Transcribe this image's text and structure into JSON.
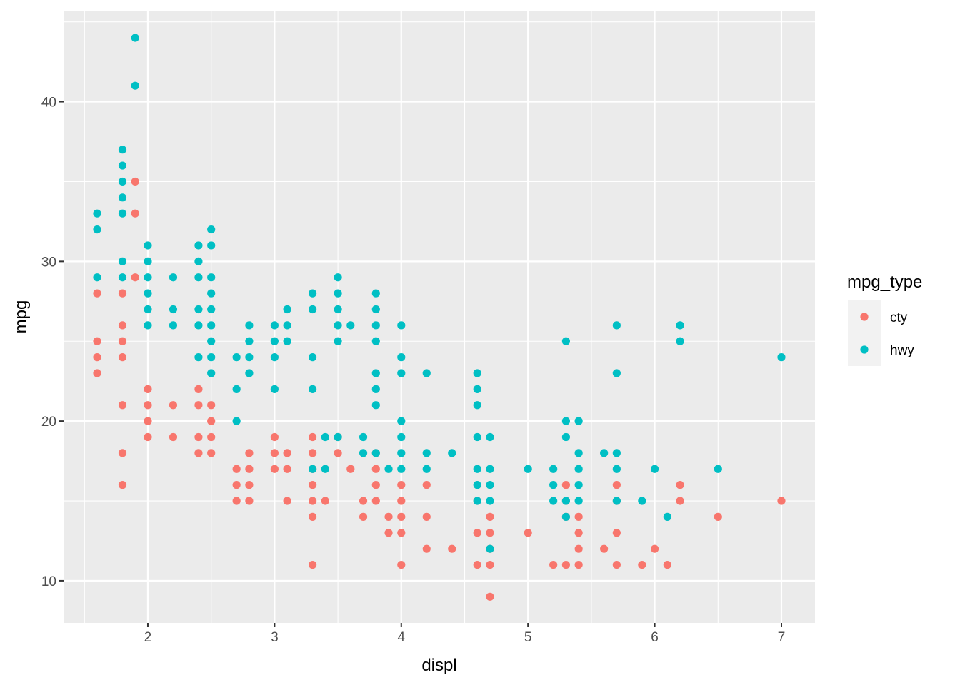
{
  "chart_data": {
    "type": "scatter",
    "title": "",
    "xlabel": "displ",
    "ylabel": "mpg",
    "xlim": [
      1.335,
      7.265
    ],
    "ylim": [
      7.36,
      45.7
    ],
    "xticks": [
      2,
      3,
      4,
      5,
      6,
      7
    ],
    "yticks": [
      10,
      20,
      30,
      40
    ],
    "grid": true,
    "legend": {
      "title": "mpg_type",
      "position": "right"
    },
    "series": [
      {
        "name": "cty",
        "color": "#F8766D",
        "points": [
          [
            1.6,
            28
          ],
          [
            1.6,
            25
          ],
          [
            1.6,
            24
          ],
          [
            1.6,
            23
          ],
          [
            1.8,
            28
          ],
          [
            1.8,
            26
          ],
          [
            1.8,
            25
          ],
          [
            1.8,
            24
          ],
          [
            1.8,
            21
          ],
          [
            1.8,
            18
          ],
          [
            1.8,
            16
          ],
          [
            1.9,
            35
          ],
          [
            1.9,
            33
          ],
          [
            1.9,
            29
          ],
          [
            2.0,
            22
          ],
          [
            2.0,
            21
          ],
          [
            2.0,
            20
          ],
          [
            2.0,
            19
          ],
          [
            2.2,
            21
          ],
          [
            2.2,
            19
          ],
          [
            2.4,
            22
          ],
          [
            2.4,
            21
          ],
          [
            2.4,
            19
          ],
          [
            2.4,
            18
          ],
          [
            2.5,
            21
          ],
          [
            2.5,
            20
          ],
          [
            2.5,
            19
          ],
          [
            2.5,
            18
          ],
          [
            2.7,
            17
          ],
          [
            2.7,
            16
          ],
          [
            2.7,
            15
          ],
          [
            2.8,
            18
          ],
          [
            2.8,
            17
          ],
          [
            2.8,
            16
          ],
          [
            2.8,
            15
          ],
          [
            3.0,
            19
          ],
          [
            3.0,
            18
          ],
          [
            3.0,
            17
          ],
          [
            3.1,
            18
          ],
          [
            3.1,
            17
          ],
          [
            3.1,
            15
          ],
          [
            3.3,
            19
          ],
          [
            3.3,
            18
          ],
          [
            3.3,
            17
          ],
          [
            3.3,
            16
          ],
          [
            3.3,
            15
          ],
          [
            3.3,
            14
          ],
          [
            3.3,
            11
          ],
          [
            3.4,
            15
          ],
          [
            3.5,
            19
          ],
          [
            3.5,
            18
          ],
          [
            3.6,
            17
          ],
          [
            3.7,
            15
          ],
          [
            3.7,
            14
          ],
          [
            3.8,
            18
          ],
          [
            3.8,
            17
          ],
          [
            3.8,
            16
          ],
          [
            3.8,
            15
          ],
          [
            3.9,
            14
          ],
          [
            3.9,
            13
          ],
          [
            4.0,
            16
          ],
          [
            4.0,
            15
          ],
          [
            4.0,
            14
          ],
          [
            4.0,
            13
          ],
          [
            4.0,
            11
          ],
          [
            4.2,
            16
          ],
          [
            4.2,
            14
          ],
          [
            4.2,
            12
          ],
          [
            4.4,
            12
          ],
          [
            4.6,
            15
          ],
          [
            4.6,
            13
          ],
          [
            4.6,
            11
          ],
          [
            4.7,
            14
          ],
          [
            4.7,
            13
          ],
          [
            4.7,
            12
          ],
          [
            4.7,
            11
          ],
          [
            4.7,
            9
          ],
          [
            5.0,
            13
          ],
          [
            5.2,
            11
          ],
          [
            5.3,
            16
          ],
          [
            5.3,
            15
          ],
          [
            5.3,
            14
          ],
          [
            5.3,
            11
          ],
          [
            5.4,
            14
          ],
          [
            5.4,
            13
          ],
          [
            5.4,
            12
          ],
          [
            5.4,
            11
          ],
          [
            5.6,
            12
          ],
          [
            5.7,
            16
          ],
          [
            5.7,
            15
          ],
          [
            5.7,
            13
          ],
          [
            5.7,
            11
          ],
          [
            5.9,
            11
          ],
          [
            6.0,
            12
          ],
          [
            6.1,
            11
          ],
          [
            6.2,
            16
          ],
          [
            6.2,
            15
          ],
          [
            6.5,
            14
          ],
          [
            7.0,
            15
          ]
        ]
      },
      {
        "name": "hwy",
        "color": "#00BFC4",
        "points": [
          [
            1.6,
            33
          ],
          [
            1.6,
            32
          ],
          [
            1.6,
            29
          ],
          [
            1.8,
            37
          ],
          [
            1.8,
            36
          ],
          [
            1.8,
            35
          ],
          [
            1.8,
            34
          ],
          [
            1.8,
            33
          ],
          [
            1.8,
            30
          ],
          [
            1.8,
            29
          ],
          [
            1.9,
            44
          ],
          [
            1.9,
            41
          ],
          [
            2.0,
            31
          ],
          [
            2.0,
            30
          ],
          [
            2.0,
            29
          ],
          [
            2.0,
            28
          ],
          [
            2.0,
            27
          ],
          [
            2.0,
            26
          ],
          [
            2.2,
            29
          ],
          [
            2.2,
            27
          ],
          [
            2.2,
            26
          ],
          [
            2.4,
            31
          ],
          [
            2.4,
            30
          ],
          [
            2.4,
            29
          ],
          [
            2.4,
            27
          ],
          [
            2.4,
            26
          ],
          [
            2.4,
            24
          ],
          [
            2.5,
            32
          ],
          [
            2.5,
            31
          ],
          [
            2.5,
            29
          ],
          [
            2.5,
            28
          ],
          [
            2.5,
            27
          ],
          [
            2.5,
            26
          ],
          [
            2.5,
            25
          ],
          [
            2.5,
            24
          ],
          [
            2.5,
            23
          ],
          [
            2.7,
            24
          ],
          [
            2.7,
            22
          ],
          [
            2.7,
            20
          ],
          [
            2.8,
            26
          ],
          [
            2.8,
            25
          ],
          [
            2.8,
            24
          ],
          [
            2.8,
            23
          ],
          [
            3.0,
            26
          ],
          [
            3.0,
            25
          ],
          [
            3.0,
            24
          ],
          [
            3.0,
            22
          ],
          [
            3.1,
            27
          ],
          [
            3.1,
            26
          ],
          [
            3.1,
            25
          ],
          [
            3.3,
            28
          ],
          [
            3.3,
            27
          ],
          [
            3.3,
            24
          ],
          [
            3.3,
            22
          ],
          [
            3.3,
            17
          ],
          [
            3.4,
            19
          ],
          [
            3.4,
            17
          ],
          [
            3.5,
            29
          ],
          [
            3.5,
            28
          ],
          [
            3.5,
            27
          ],
          [
            3.5,
            26
          ],
          [
            3.5,
            25
          ],
          [
            3.5,
            19
          ],
          [
            3.6,
            26
          ],
          [
            3.7,
            19
          ],
          [
            3.7,
            18
          ],
          [
            3.8,
            28
          ],
          [
            3.8,
            27
          ],
          [
            3.8,
            26
          ],
          [
            3.8,
            25
          ],
          [
            3.8,
            23
          ],
          [
            3.8,
            22
          ],
          [
            3.8,
            21
          ],
          [
            3.8,
            18
          ],
          [
            3.9,
            17
          ],
          [
            4.0,
            26
          ],
          [
            4.0,
            24
          ],
          [
            4.0,
            23
          ],
          [
            4.0,
            20
          ],
          [
            4.0,
            19
          ],
          [
            4.0,
            18
          ],
          [
            4.0,
            17
          ],
          [
            4.2,
            23
          ],
          [
            4.2,
            18
          ],
          [
            4.2,
            17
          ],
          [
            4.4,
            18
          ],
          [
            4.6,
            23
          ],
          [
            4.6,
            22
          ],
          [
            4.6,
            21
          ],
          [
            4.6,
            19
          ],
          [
            4.6,
            17
          ],
          [
            4.6,
            16
          ],
          [
            4.6,
            15
          ],
          [
            4.7,
            19
          ],
          [
            4.7,
            17
          ],
          [
            4.7,
            16
          ],
          [
            4.7,
            15
          ],
          [
            4.7,
            12
          ],
          [
            5.0,
            17
          ],
          [
            5.2,
            17
          ],
          [
            5.2,
            16
          ],
          [
            5.2,
            15
          ],
          [
            5.3,
            25
          ],
          [
            5.3,
            20
          ],
          [
            5.3,
            19
          ],
          [
            5.3,
            15
          ],
          [
            5.3,
            14
          ],
          [
            5.4,
            20
          ],
          [
            5.4,
            18
          ],
          [
            5.4,
            17
          ],
          [
            5.4,
            16
          ],
          [
            5.4,
            15
          ],
          [
            5.6,
            18
          ],
          [
            5.7,
            26
          ],
          [
            5.7,
            23
          ],
          [
            5.7,
            18
          ],
          [
            5.7,
            17
          ],
          [
            5.7,
            15
          ],
          [
            5.9,
            15
          ],
          [
            6.0,
            17
          ],
          [
            6.1,
            14
          ],
          [
            6.2,
            26
          ],
          [
            6.2,
            25
          ],
          [
            6.5,
            17
          ],
          [
            7.0,
            24
          ]
        ]
      }
    ]
  }
}
